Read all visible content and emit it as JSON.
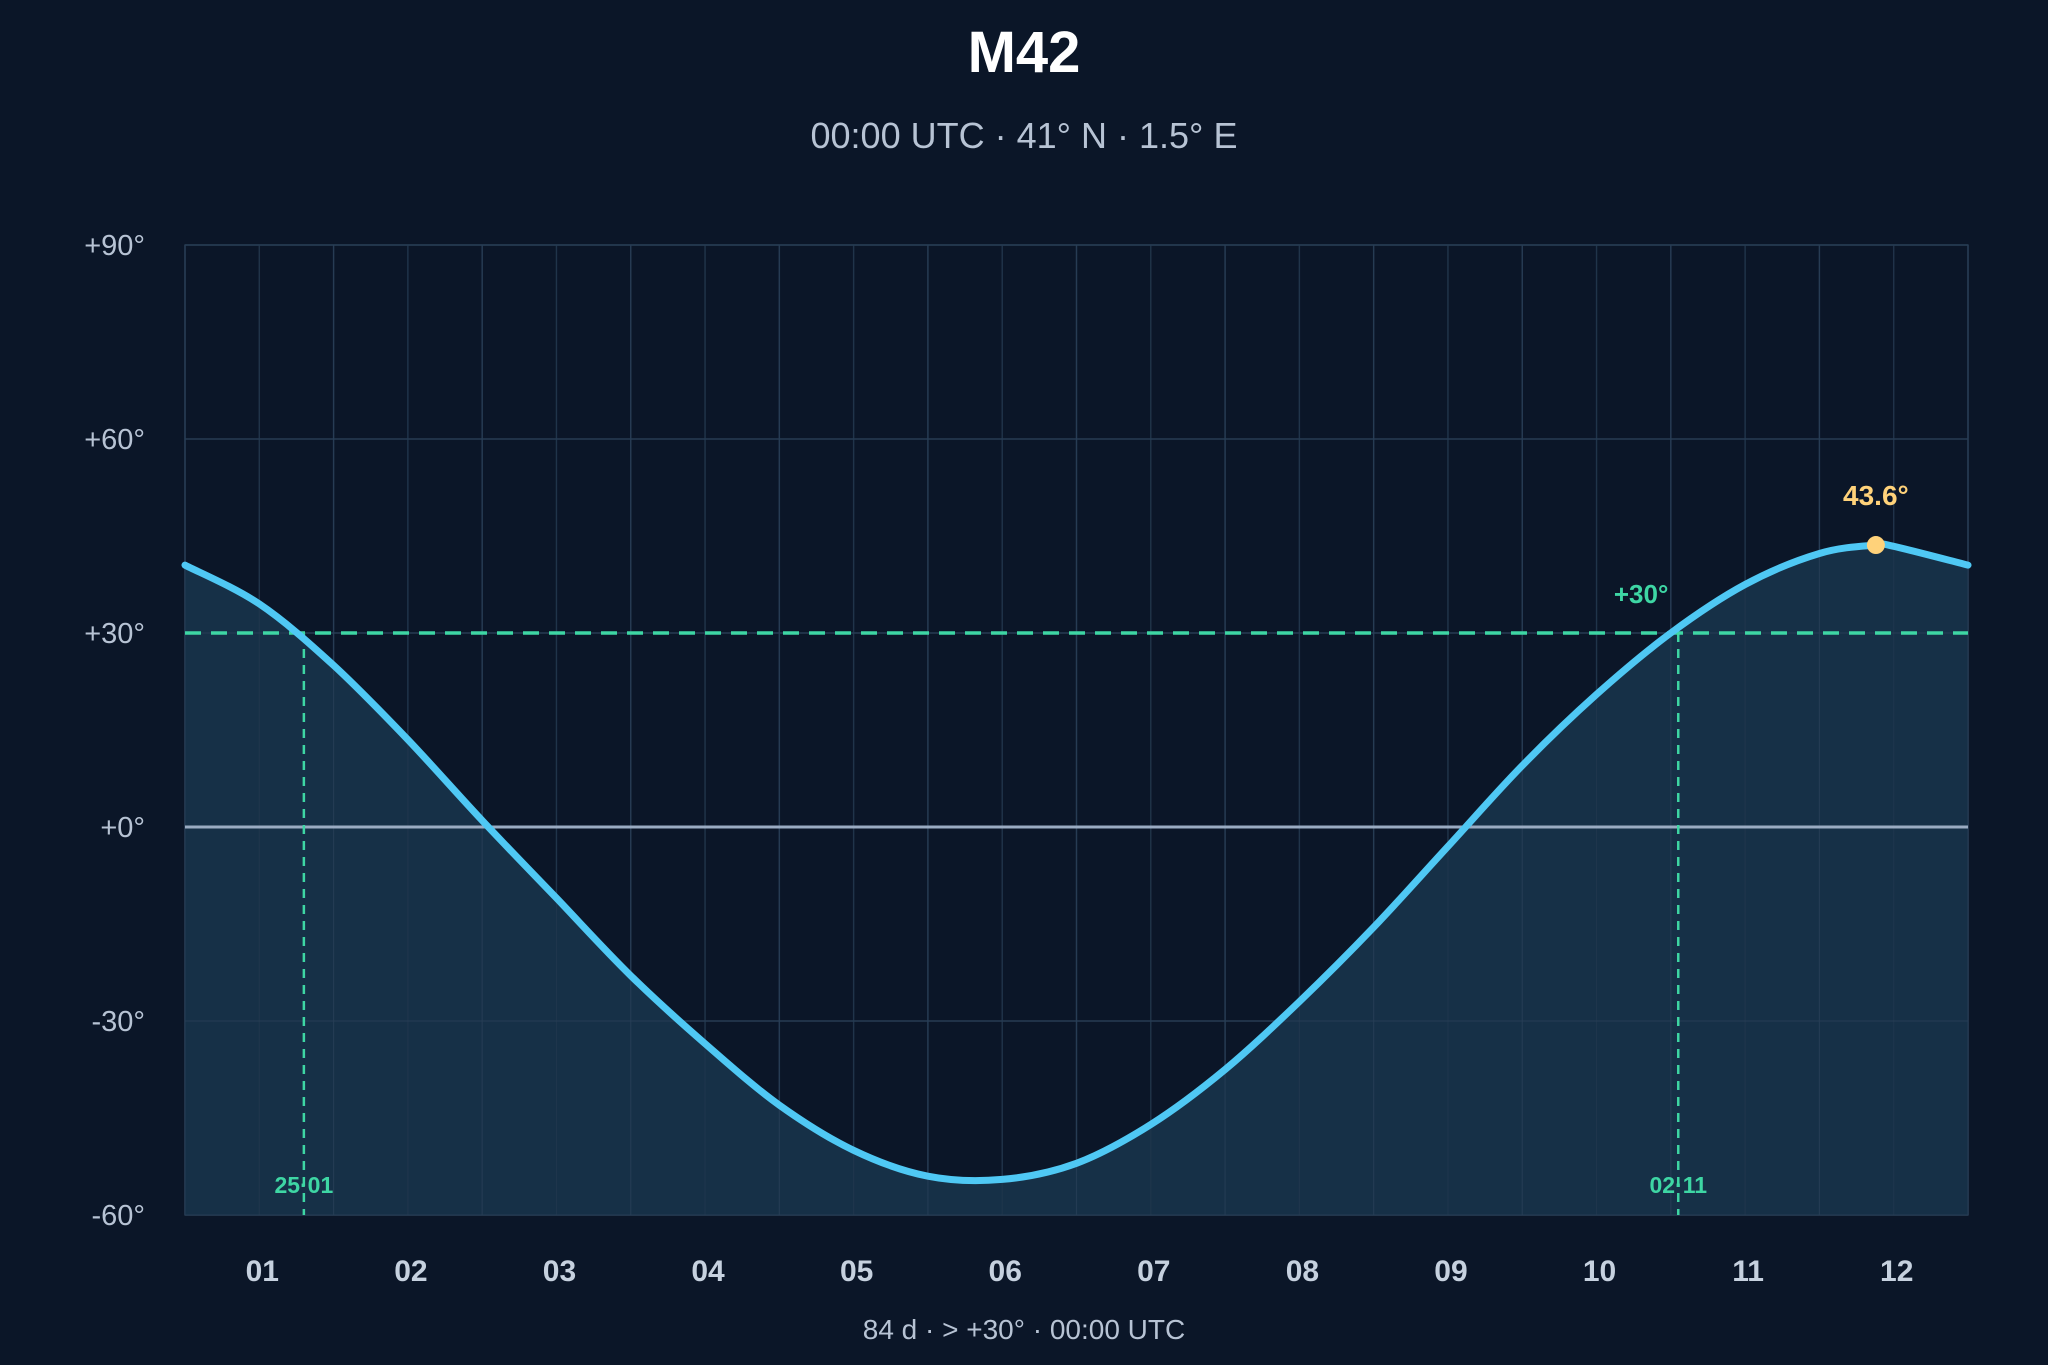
{
  "chart_data": {
    "type": "line",
    "title": "M42",
    "subtitle": "00:00 UTC · 41° N · 1.5° E",
    "xlabel": "",
    "ylabel": "",
    "x_unit": "month",
    "xlim": [
      0.5,
      12.5
    ],
    "ylim": [
      -60,
      90
    ],
    "y_ticks": [
      90,
      60,
      30,
      0,
      -30,
      -60
    ],
    "y_tick_labels": [
      "+90°",
      "+60°",
      "+30°",
      "+0°",
      "-30°",
      "-60°"
    ],
    "x_ticks": [
      1,
      2,
      3,
      4,
      5,
      6,
      7,
      8,
      9,
      10,
      11,
      12
    ],
    "x_tick_labels": [
      "01",
      "02",
      "03",
      "04",
      "05",
      "06",
      "07",
      "08",
      "09",
      "10",
      "11",
      "12"
    ],
    "grid": true,
    "series": [
      {
        "color": "#4fc8f4",
        "x": [
          0.5,
          1.0,
          1.5,
          2.0,
          2.5,
          3.0,
          3.5,
          4.0,
          4.5,
          5.0,
          5.5,
          6.0,
          6.5,
          7.0,
          7.5,
          8.0,
          8.5,
          9.0,
          9.5,
          10.0,
          10.5,
          11.0,
          11.5,
          11.88,
          12.0,
          12.5
        ],
        "y": [
          40.5,
          34.5,
          25.0,
          13.5,
          1.0,
          -11.0,
          -23.0,
          -33.5,
          -43.0,
          -50.0,
          -54.0,
          -54.5,
          -52.0,
          -46.0,
          -37.5,
          -27.0,
          -15.5,
          -3.0,
          9.5,
          20.5,
          30.0,
          37.5,
          42.3,
          43.6,
          43.4,
          40.5
        ]
      }
    ],
    "reference_lines": {
      "horizon": {
        "y": 0,
        "color": "#9aabc2"
      },
      "threshold": {
        "y": 30,
        "label": "+30°",
        "color": "#3ed6a4"
      }
    },
    "crossings": [
      {
        "x": 1.3,
        "label": "25·01"
      },
      {
        "x": 10.55,
        "label": "02·11"
      }
    ],
    "peak": {
      "x": 11.88,
      "y": 43.6,
      "label": "43.6°",
      "color": "#ffd27a"
    },
    "footer": "84 d  ·  > +30°  ·  00:00 UTC"
  }
}
